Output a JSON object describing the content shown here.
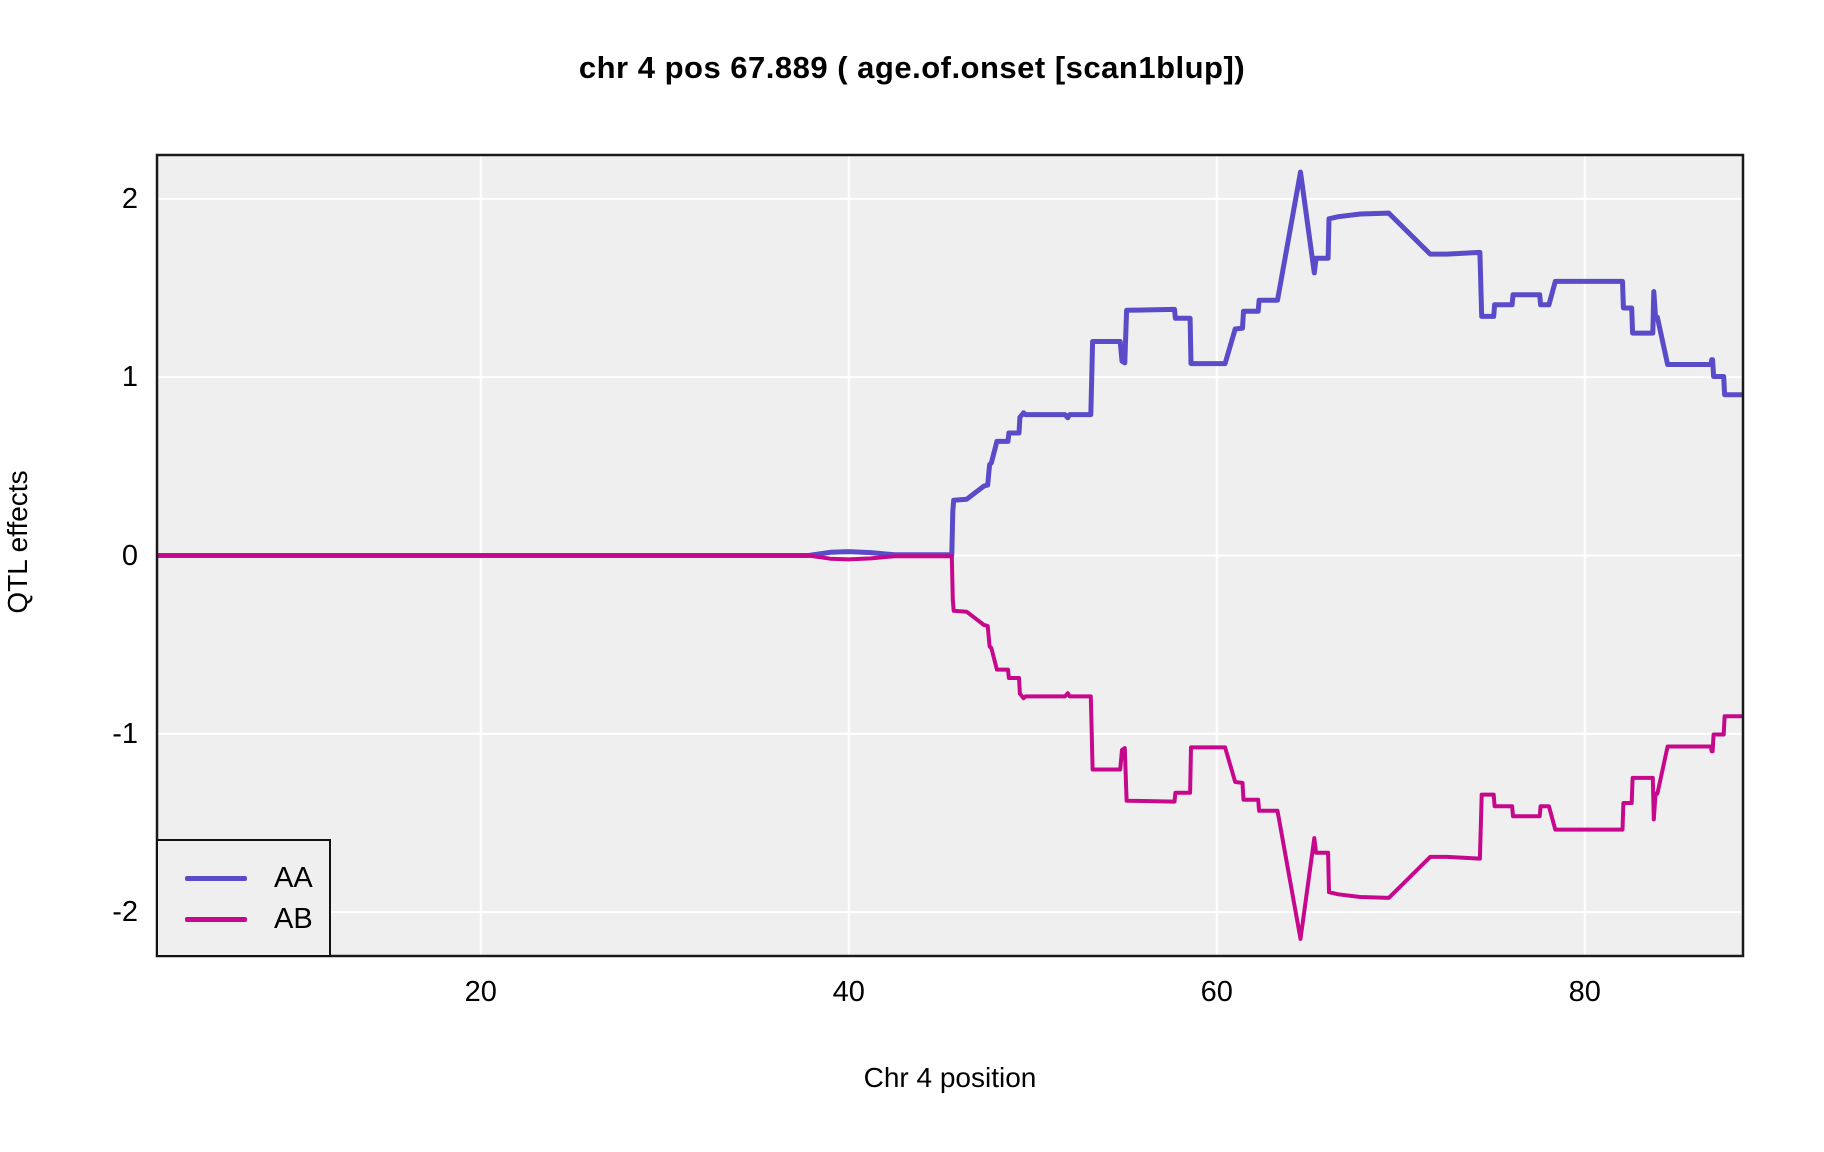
{
  "chart_data": {
    "type": "line",
    "title": "chr 4 pos 67.889 ( age.of.onset  [scan1blup])",
    "xlabel": "Chr 4 position",
    "ylabel": "QTL effects",
    "xlim": [
      2.4,
      88.6
    ],
    "ylim": [
      -2.246,
      2.246
    ],
    "x_ticks": [
      20,
      40,
      60,
      80
    ],
    "y_ticks": [
      -2,
      -1,
      0,
      1,
      2
    ],
    "grid": true,
    "panel_background": "#EFEFEF",
    "gridline_color": "#FFFFFF",
    "border_color": "#1A1A1A",
    "legend_position": "bottom-left",
    "series": [
      {
        "name": "AA",
        "color": "#5A4CC8",
        "points": [
          [
            2.4,
            0
          ],
          [
            37.8,
            0
          ],
          [
            39,
            0.018
          ],
          [
            40,
            0.022
          ],
          [
            41.2,
            0.016
          ],
          [
            42.5,
            0.004
          ],
          [
            45.6,
            0.004
          ],
          [
            45.65,
            0.248
          ],
          [
            45.7,
            0.31
          ],
          [
            46.4,
            0.315
          ],
          [
            47.35,
            0.39
          ],
          [
            47.55,
            0.395
          ],
          [
            47.6,
            0.45
          ],
          [
            47.65,
            0.51
          ],
          [
            47.75,
            0.52
          ],
          [
            48,
            0.62
          ],
          [
            48.05,
            0.64
          ],
          [
            48.65,
            0.64
          ],
          [
            48.7,
            0.687
          ],
          [
            49.25,
            0.687
          ],
          [
            49.3,
            0.775
          ],
          [
            49.5,
            0.8
          ],
          [
            49.6,
            0.79
          ],
          [
            51.75,
            0.79
          ],
          [
            51.9,
            0.772
          ],
          [
            52,
            0.79
          ],
          [
            53.15,
            0.79
          ],
          [
            53.2,
            0.99
          ],
          [
            53.25,
            1.2
          ],
          [
            54.75,
            1.2
          ],
          [
            54.85,
            1.09
          ],
          [
            55,
            1.08
          ],
          [
            55.1,
            1.375
          ],
          [
            57.7,
            1.38
          ],
          [
            57.75,
            1.33
          ],
          [
            58.55,
            1.33
          ],
          [
            58.6,
            1.076
          ],
          [
            60.45,
            1.076
          ],
          [
            61,
            1.27
          ],
          [
            61.4,
            1.275
          ],
          [
            61.45,
            1.37
          ],
          [
            62.25,
            1.37
          ],
          [
            62.3,
            1.432
          ],
          [
            63.3,
            1.432
          ],
          [
            64.55,
            2.15
          ],
          [
            65.3,
            1.585
          ],
          [
            65.4,
            1.667
          ],
          [
            66.05,
            1.667
          ],
          [
            66.1,
            1.888
          ],
          [
            66.6,
            1.9
          ],
          [
            67.8,
            1.915
          ],
          [
            69.35,
            1.92
          ],
          [
            71.6,
            1.69
          ],
          [
            72.5,
            1.69
          ],
          [
            74.3,
            1.7
          ],
          [
            74.4,
            1.341
          ],
          [
            75.05,
            1.341
          ],
          [
            75.1,
            1.406
          ],
          [
            76.05,
            1.406
          ],
          [
            76.1,
            1.462
          ],
          [
            77.55,
            1.462
          ],
          [
            77.6,
            1.406
          ],
          [
            78.05,
            1.406
          ],
          [
            78.4,
            1.537
          ],
          [
            82.05,
            1.537
          ],
          [
            82.1,
            1.388
          ],
          [
            82.55,
            1.388
          ],
          [
            82.6,
            1.247
          ],
          [
            83.7,
            1.247
          ],
          [
            83.75,
            1.48
          ],
          [
            83.85,
            1.335
          ],
          [
            83.95,
            1.335
          ],
          [
            84.5,
            1.071
          ],
          [
            86.85,
            1.071
          ],
          [
            86.9,
            1.098
          ],
          [
            86.95,
            1.098
          ],
          [
            87,
            1.004
          ],
          [
            87.55,
            1.004
          ],
          [
            87.6,
            0.902
          ],
          [
            88.6,
            0.902
          ]
        ]
      },
      {
        "name": "AB",
        "color": "#C6098C",
        "points": [
          [
            2.4,
            0
          ],
          [
            37.8,
            0
          ],
          [
            39,
            -0.018
          ],
          [
            40,
            -0.022
          ],
          [
            41.2,
            -0.016
          ],
          [
            42.5,
            -0.004
          ],
          [
            45.6,
            -0.004
          ],
          [
            45.65,
            -0.248
          ],
          [
            45.7,
            -0.31
          ],
          [
            46.4,
            -0.315
          ],
          [
            47.35,
            -0.39
          ],
          [
            47.55,
            -0.395
          ],
          [
            47.6,
            -0.45
          ],
          [
            47.65,
            -0.51
          ],
          [
            47.75,
            -0.52
          ],
          [
            48,
            -0.62
          ],
          [
            48.05,
            -0.64
          ],
          [
            48.65,
            -0.64
          ],
          [
            48.7,
            -0.687
          ],
          [
            49.25,
            -0.687
          ],
          [
            49.3,
            -0.775
          ],
          [
            49.5,
            -0.8
          ],
          [
            49.6,
            -0.79
          ],
          [
            51.75,
            -0.79
          ],
          [
            51.9,
            -0.772
          ],
          [
            52,
            -0.79
          ],
          [
            53.15,
            -0.79
          ],
          [
            53.2,
            -0.99
          ],
          [
            53.25,
            -1.2
          ],
          [
            54.75,
            -1.2
          ],
          [
            54.85,
            -1.09
          ],
          [
            55,
            -1.08
          ],
          [
            55.1,
            -1.375
          ],
          [
            57.7,
            -1.38
          ],
          [
            57.75,
            -1.33
          ],
          [
            58.55,
            -1.33
          ],
          [
            58.6,
            -1.076
          ],
          [
            60.45,
            -1.076
          ],
          [
            61,
            -1.27
          ],
          [
            61.4,
            -1.275
          ],
          [
            61.45,
            -1.37
          ],
          [
            62.25,
            -1.37
          ],
          [
            62.3,
            -1.432
          ],
          [
            63.3,
            -1.432
          ],
          [
            64.55,
            -2.15
          ],
          [
            65.3,
            -1.585
          ],
          [
            65.4,
            -1.667
          ],
          [
            66.05,
            -1.667
          ],
          [
            66.1,
            -1.888
          ],
          [
            66.6,
            -1.9
          ],
          [
            67.8,
            -1.915
          ],
          [
            69.35,
            -1.92
          ],
          [
            71.6,
            -1.69
          ],
          [
            72.5,
            -1.69
          ],
          [
            74.3,
            -1.7
          ],
          [
            74.4,
            -1.341
          ],
          [
            75.05,
            -1.341
          ],
          [
            75.1,
            -1.406
          ],
          [
            76.05,
            -1.406
          ],
          [
            76.1,
            -1.462
          ],
          [
            77.55,
            -1.462
          ],
          [
            77.6,
            -1.406
          ],
          [
            78.05,
            -1.406
          ],
          [
            78.4,
            -1.537
          ],
          [
            82.05,
            -1.537
          ],
          [
            82.1,
            -1.388
          ],
          [
            82.55,
            -1.388
          ],
          [
            82.6,
            -1.247
          ],
          [
            83.7,
            -1.247
          ],
          [
            83.75,
            -1.48
          ],
          [
            83.85,
            -1.335
          ],
          [
            83.95,
            -1.335
          ],
          [
            84.5,
            -1.071
          ],
          [
            86.85,
            -1.071
          ],
          [
            86.9,
            -1.098
          ],
          [
            86.95,
            -1.098
          ],
          [
            87,
            -1.004
          ],
          [
            87.55,
            -1.004
          ],
          [
            87.6,
            -0.902
          ],
          [
            88.6,
            -0.902
          ]
        ]
      }
    ]
  }
}
